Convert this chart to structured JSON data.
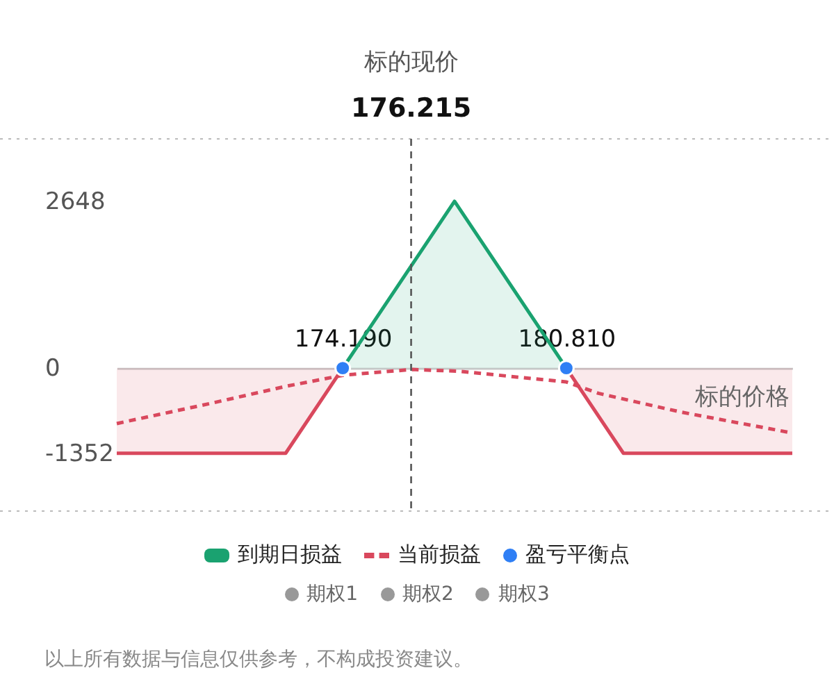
{
  "chart_data": {
    "type": "area",
    "title": "标的现价",
    "xlabel": "标的价格",
    "x": [
      167.5,
      172.5,
      174.19,
      177.5,
      180.81,
      182.5,
      187.5
    ],
    "series": [
      {
        "name": "到期日损益",
        "color": "#1aa270",
        "values": [
          null,
          null,
          0,
          2648,
          0,
          null,
          null
        ]
      },
      {
        "color": "#d9485d",
        "values": [
          -1352,
          -1352,
          0,
          null,
          0,
          -1352,
          -1352
        ]
      },
      {
        "name": "当前损益",
        "type": "line",
        "line_style": "dashed",
        "color": "#d9485d",
        "x": [
          167.5,
          170.24,
          172.5,
          174.23,
          176.25,
          177.64,
          180.81,
          181.76,
          184.22,
          187.5
        ],
        "values": [
          -880,
          -565,
          -290,
          -110,
          -22,
          -50,
          -220,
          -400,
          -700,
          -1030
        ]
      },
      {
        "name": "盈亏平衡点",
        "type": "scatter",
        "color": "#2f7ff5",
        "x": [
          174.19,
          180.81
        ],
        "values": [
          0,
          0
        ]
      },
      {
        "name": "期权1",
        "type": "scatter",
        "color": "#999999",
        "values": [
          null,
          null,
          null,
          null,
          null,
          null,
          null
        ]
      },
      {
        "name": "期权2",
        "type": "scatter",
        "color": "#999999",
        "values": [
          null,
          null,
          null,
          null,
          null,
          null,
          null
        ]
      },
      {
        "name": "期权3",
        "type": "scatter",
        "color": "#999999",
        "values": [
          null,
          null,
          null,
          null,
          null,
          null,
          null
        ]
      }
    ],
    "xlim": [
      167.5,
      187.5
    ],
    "xticks": [
      {
        "value": 174.19,
        "label": "174.190"
      },
      {
        "value": 180.81,
        "label": "180.810"
      }
    ],
    "ylim": [
      -2270,
      3640
    ],
    "yticks": [
      -1352,
      0,
      2648
    ],
    "ref_lines": [
      {
        "axis": "x",
        "value": 176.215,
        "label": "176.215",
        "color": "#555555",
        "line_style": "dashed"
      }
    ],
    "legend": "bottom",
    "annotations": [
      "以上所有数据与信息仅供参考，不构成投资建议。"
    ]
  }
}
